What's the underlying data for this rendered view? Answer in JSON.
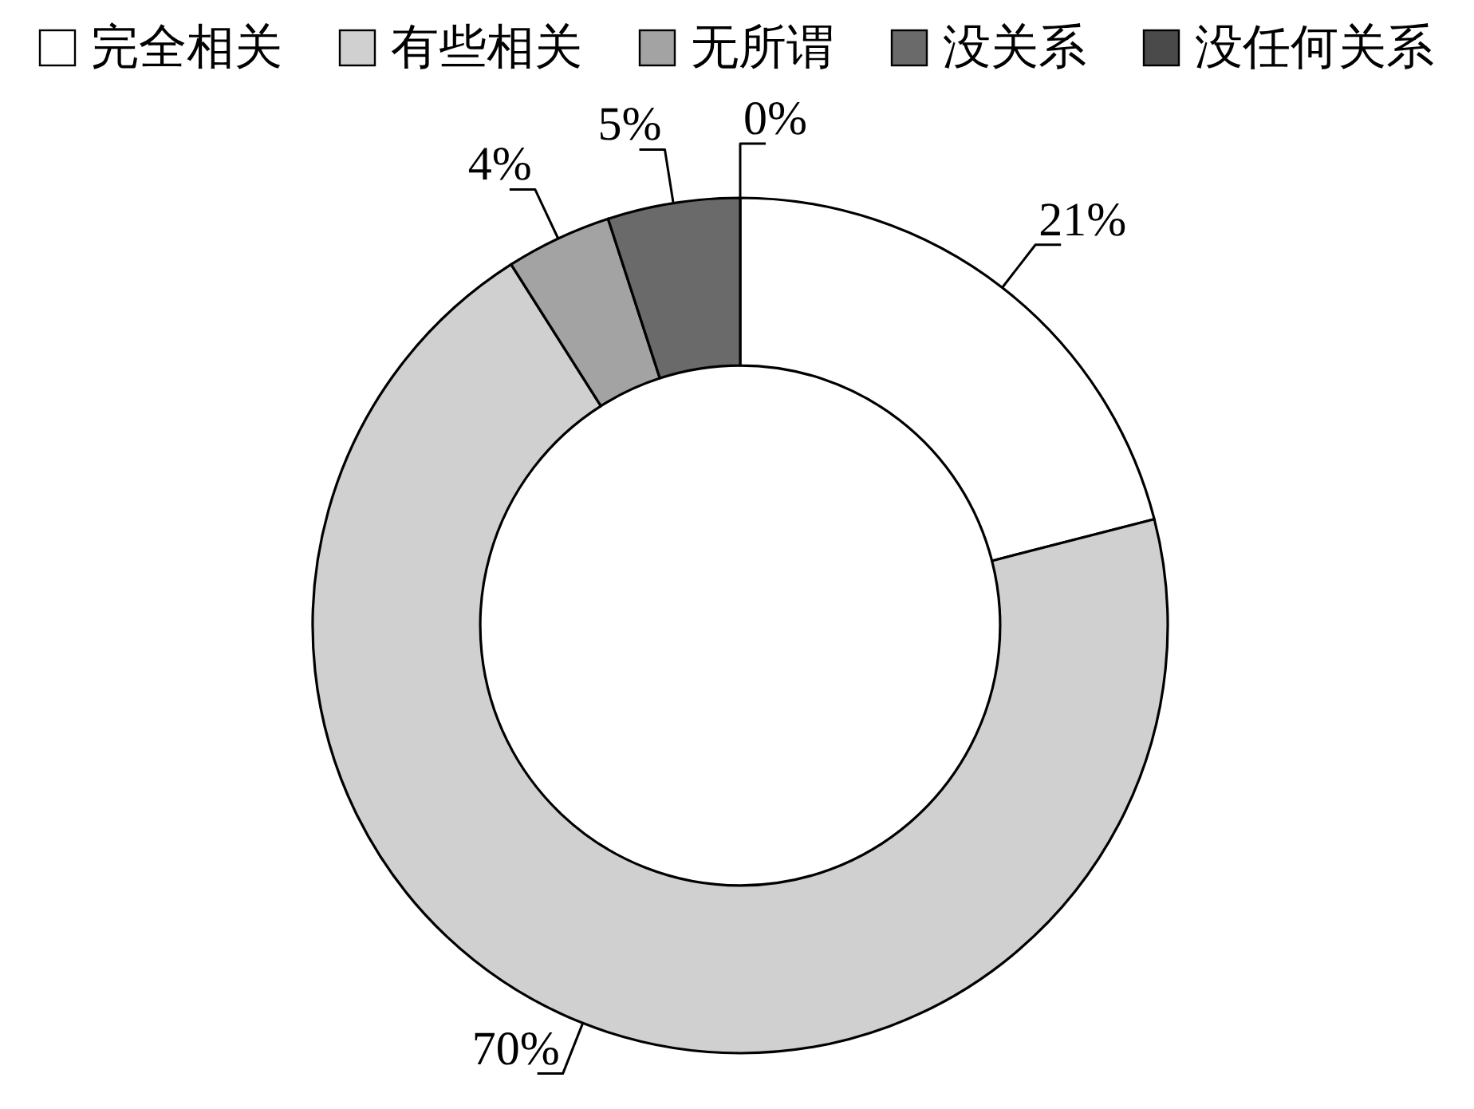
{
  "chart_data": {
    "type": "donut",
    "categories": [
      "完全相关",
      "有些相关",
      "无所谓",
      "没关系",
      "没任何关系"
    ],
    "values": [
      21,
      70,
      4,
      5,
      0
    ],
    "colors": [
      "#ffffff",
      "#d0d0d0",
      "#a3a3a3",
      "#6a6a6a",
      "#4a4a4a"
    ],
    "value_labels": [
      "21%",
      "70%",
      "4%",
      "5%",
      "0%"
    ],
    "legend": "top"
  }
}
